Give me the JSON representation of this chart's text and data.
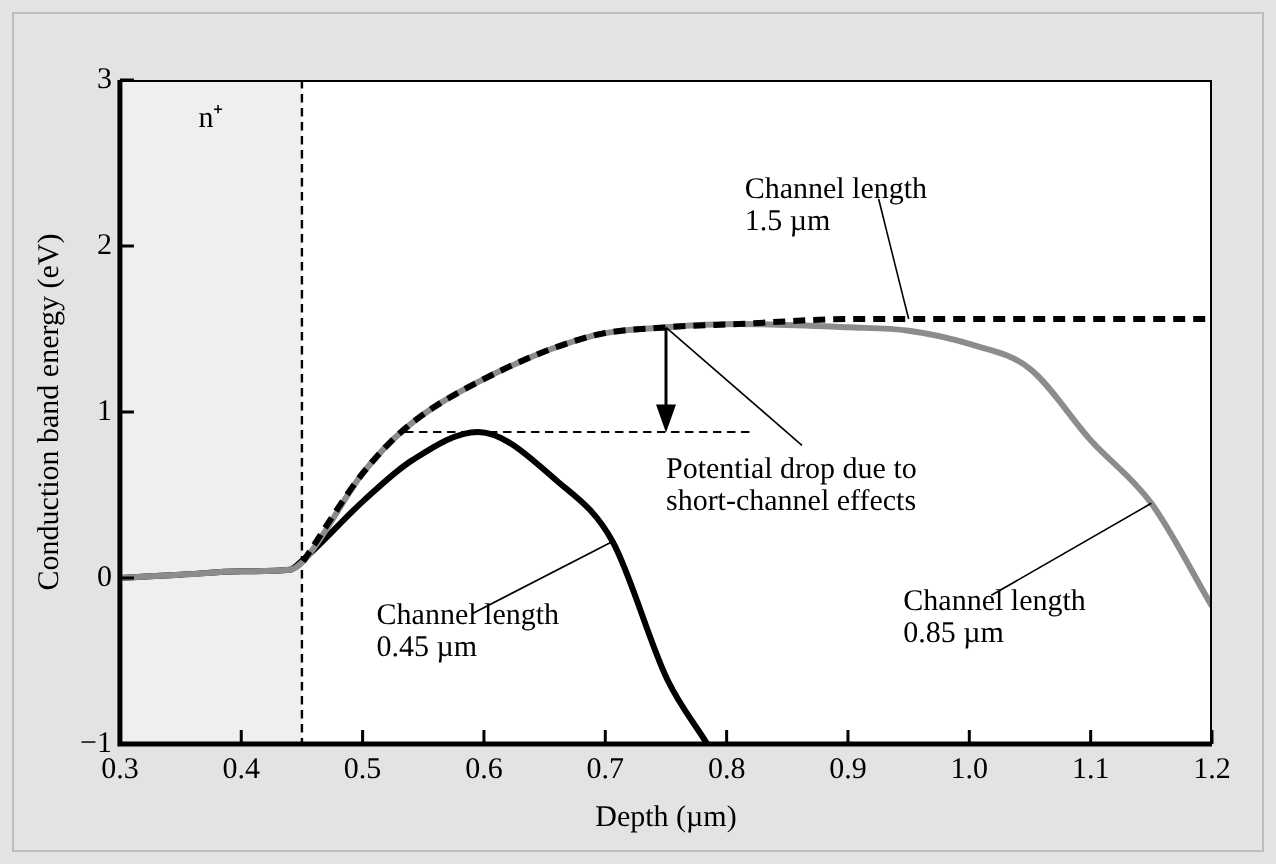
{
  "chart_data": {
    "type": "line",
    "xlabel": "Depth (µm)",
    "ylabel": "Conduction band energy (eV)",
    "xlim": [
      0.3,
      1.2
    ],
    "xticks": [
      0.3,
      0.4,
      0.5,
      0.6,
      0.7,
      0.8,
      0.9,
      {
        "value": 1,
        "label": "1.0"
      },
      1.1,
      1.2
    ],
    "ylim": [
      -1,
      3
    ],
    "yticks": [
      {
        "value": -1,
        "label": "−1"
      },
      0,
      1,
      2,
      3
    ],
    "series": [
      {
        "color": "#000000",
        "x": [
          0.3,
          0.35,
          0.4,
          0.44,
          0.451,
          0.5,
          0.541,
          0.595,
          0.661,
          0.706,
          0.751,
          0.784
        ],
        "values": [
          0,
          0.02,
          0.04,
          0.05,
          0.11,
          0.46,
          0.71,
          0.88,
          0.58,
          0.22,
          -0.61,
          -1
        ]
      },
      {
        "color": "#8c8c8c",
        "x": [
          0.3,
          0.35,
          0.4,
          0.44,
          0.451,
          0.5,
          0.535,
          0.595,
          0.69,
          0.75,
          0.81,
          0.9,
          0.95,
          1.0,
          1.05,
          1.1,
          1.15,
          1.2
        ],
        "values": [
          0,
          0.02,
          0.04,
          0.05,
          0.1,
          0.63,
          0.9,
          1.18,
          1.46,
          1.51,
          1.53,
          1.51,
          1.49,
          1.41,
          1.26,
          0.83,
          0.45,
          -0.17
        ]
      },
      {
        "color": "#000000",
        "line_style": "dashed",
        "x": [
          0.451,
          0.5,
          0.535,
          0.595,
          0.69,
          0.75,
          0.81,
          0.9,
          0.95,
          1.0,
          1.1,
          1.2
        ],
        "values": [
          0.1,
          0.63,
          0.9,
          1.18,
          1.46,
          1.51,
          1.53,
          1.56,
          1.56,
          1.56,
          1.56,
          1.56
        ]
      },
      {
        "color": "#000000",
        "line_style": "dashed",
        "x": [
          0.535,
          0.82
        ],
        "values": [
          0.88,
          0.88
        ]
      }
    ],
    "bands": [
      {
        "axis": "x",
        "from": 0.3,
        "to": 0.45,
        "label": "n⁺",
        "color": "#efefef"
      }
    ],
    "ref_lines": [
      {
        "axis": "x",
        "value": 0.45,
        "color": "#000000",
        "line_style": "dashed"
      }
    ],
    "annotations": [
      {
        "text": "Channel length\n1.5 µm",
        "x": 0.95,
        "y": 1.56
      },
      {
        "text": "Potential drop due to\nshort-channel effects",
        "x": 0.75,
        "y": 1.51
      },
      {
        "text": "Channel length\n0.45 µm",
        "x": 0.706,
        "y": 0.22
      },
      {
        "text": "Channel length\n0.85 µm",
        "x": 1.15,
        "y": 0.45
      }
    ],
    "grid": false,
    "legend": false
  }
}
